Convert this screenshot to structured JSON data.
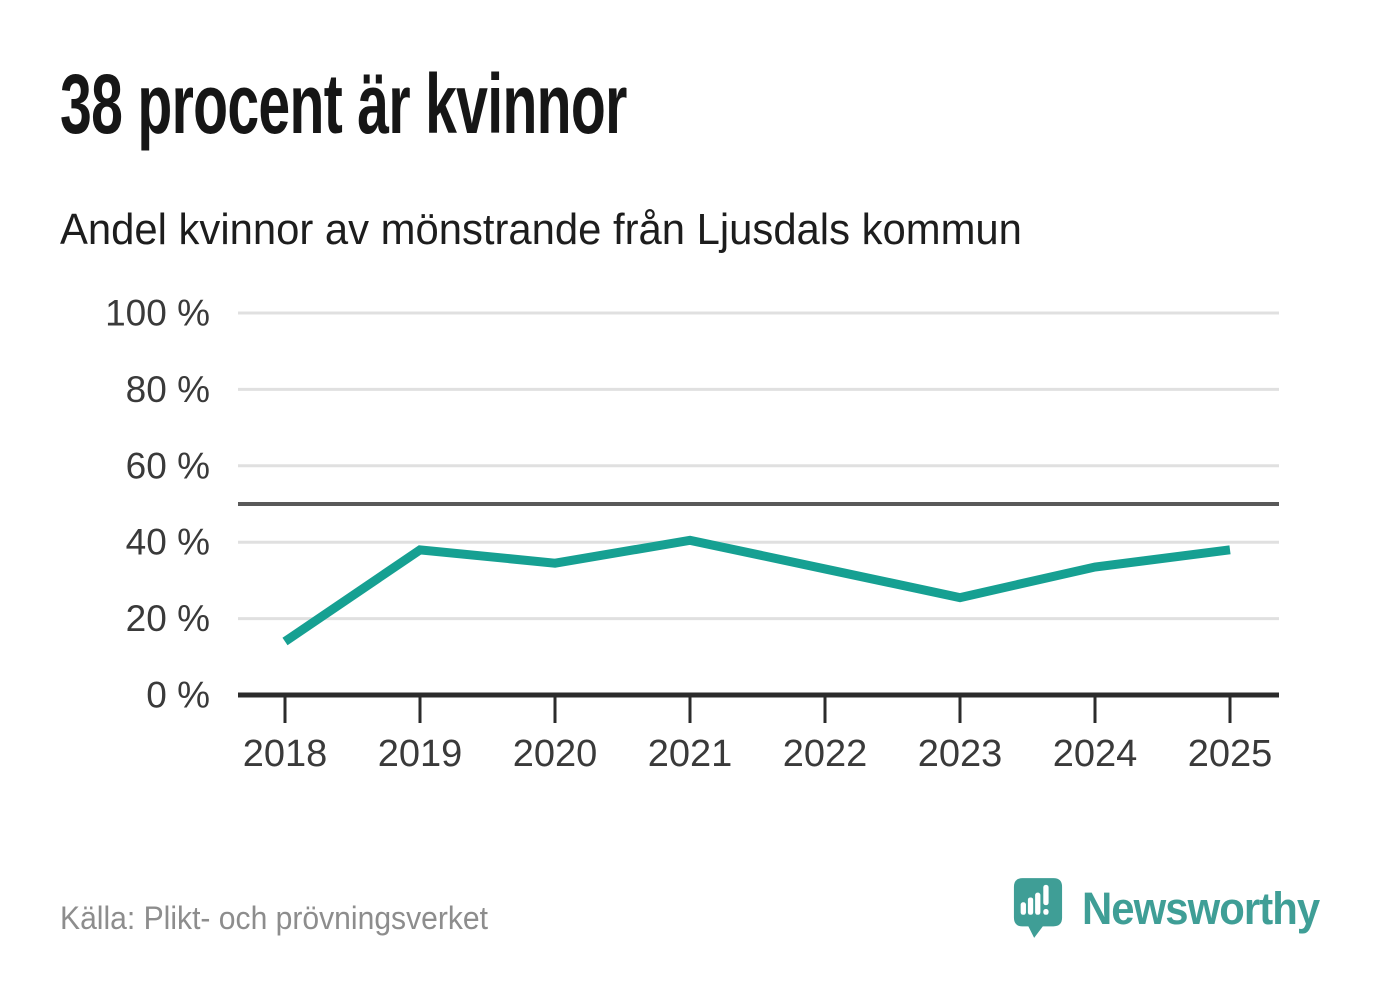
{
  "title": "38 procent är kvinnor",
  "subtitle": "Andel kvinnor av mönstrande från Ljusdals kommun",
  "footer": {
    "source": "Källa: Plikt- och prövningsverket",
    "brand": "Newsworthy"
  },
  "colors": {
    "line": "#16a092",
    "brand": "#3f9e96",
    "grid": "#e0e0e0",
    "reference_line": "#595959",
    "axis": "#2b2b2b",
    "tick_label": "#3a3a3a",
    "title_text": "#161616",
    "source_text": "#8d8d8d",
    "background": "#ffffff"
  },
  "chart_data": {
    "type": "line",
    "title": "38 procent är kvinnor",
    "subtitle": "Andel kvinnor av mönstrande från Ljusdals kommun",
    "x": [
      2018,
      2019,
      2020,
      2021,
      2022,
      2023,
      2024,
      2025
    ],
    "series": [
      {
        "name": "Andel kvinnor av mönstrande",
        "values": [
          14,
          38,
          34.5,
          40.5,
          33,
          25.5,
          33.5,
          38
        ]
      }
    ],
    "xlabel": "",
    "ylabel": "",
    "ylim": [
      0,
      100
    ],
    "yticks": [
      0,
      20,
      40,
      60,
      80,
      100
    ],
    "ytick_suffix": " %",
    "reference_line": 50,
    "grid": "horizontal",
    "legend": "none"
  }
}
